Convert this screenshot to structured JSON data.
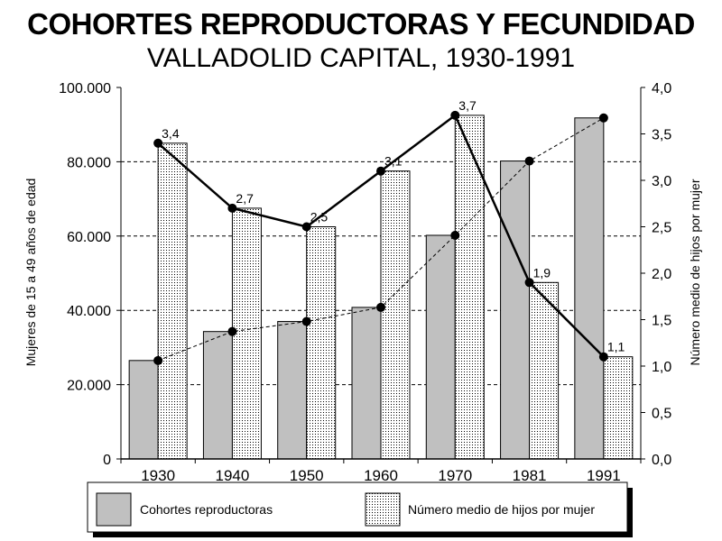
{
  "chart_data": {
    "type": "bar",
    "title": "COHORTES REPRODUCTORAS Y FECUNDIDAD",
    "subtitle": "VALLADOLID CAPITAL, 1930-1991",
    "categories": [
      "1930",
      "1940",
      "1950",
      "1960",
      "1970",
      "1981",
      "1991"
    ],
    "ylabel_left": "Mujeres de 15 a 49 años de edad",
    "ylabel_right": "Número medio de hijos por mujer",
    "ylim_left": [
      0,
      100000
    ],
    "ylim_right": [
      0,
      4.0
    ],
    "yticks_left": [
      "0",
      "20.000",
      "40.000",
      "60.000",
      "80.000",
      "100.000"
    ],
    "yticks_right": [
      "0,0",
      "0,5",
      "1,0",
      "1,5",
      "2,0",
      "2,5",
      "3,0",
      "3,5",
      "4,0"
    ],
    "grid": "horizontal dashed",
    "legend_position": "bottom",
    "series": [
      {
        "name": "Cohortes reproductoras",
        "kind": "bar",
        "axis": "left",
        "values": [
          26500,
          34300,
          37000,
          40800,
          60200,
          80200,
          91800
        ],
        "color": "#c0c0c0",
        "trend": "dashed"
      },
      {
        "name": "Número medio de hijos por mujer",
        "kind": "bar+line",
        "axis": "right",
        "values": [
          3.4,
          2.7,
          2.5,
          3.1,
          3.7,
          1.9,
          1.1
        ],
        "labels": [
          "3,4",
          "2,7",
          "2,5",
          "3,1",
          "3,7",
          "1,9",
          "1,1"
        ],
        "pattern": "dotted"
      }
    ]
  }
}
